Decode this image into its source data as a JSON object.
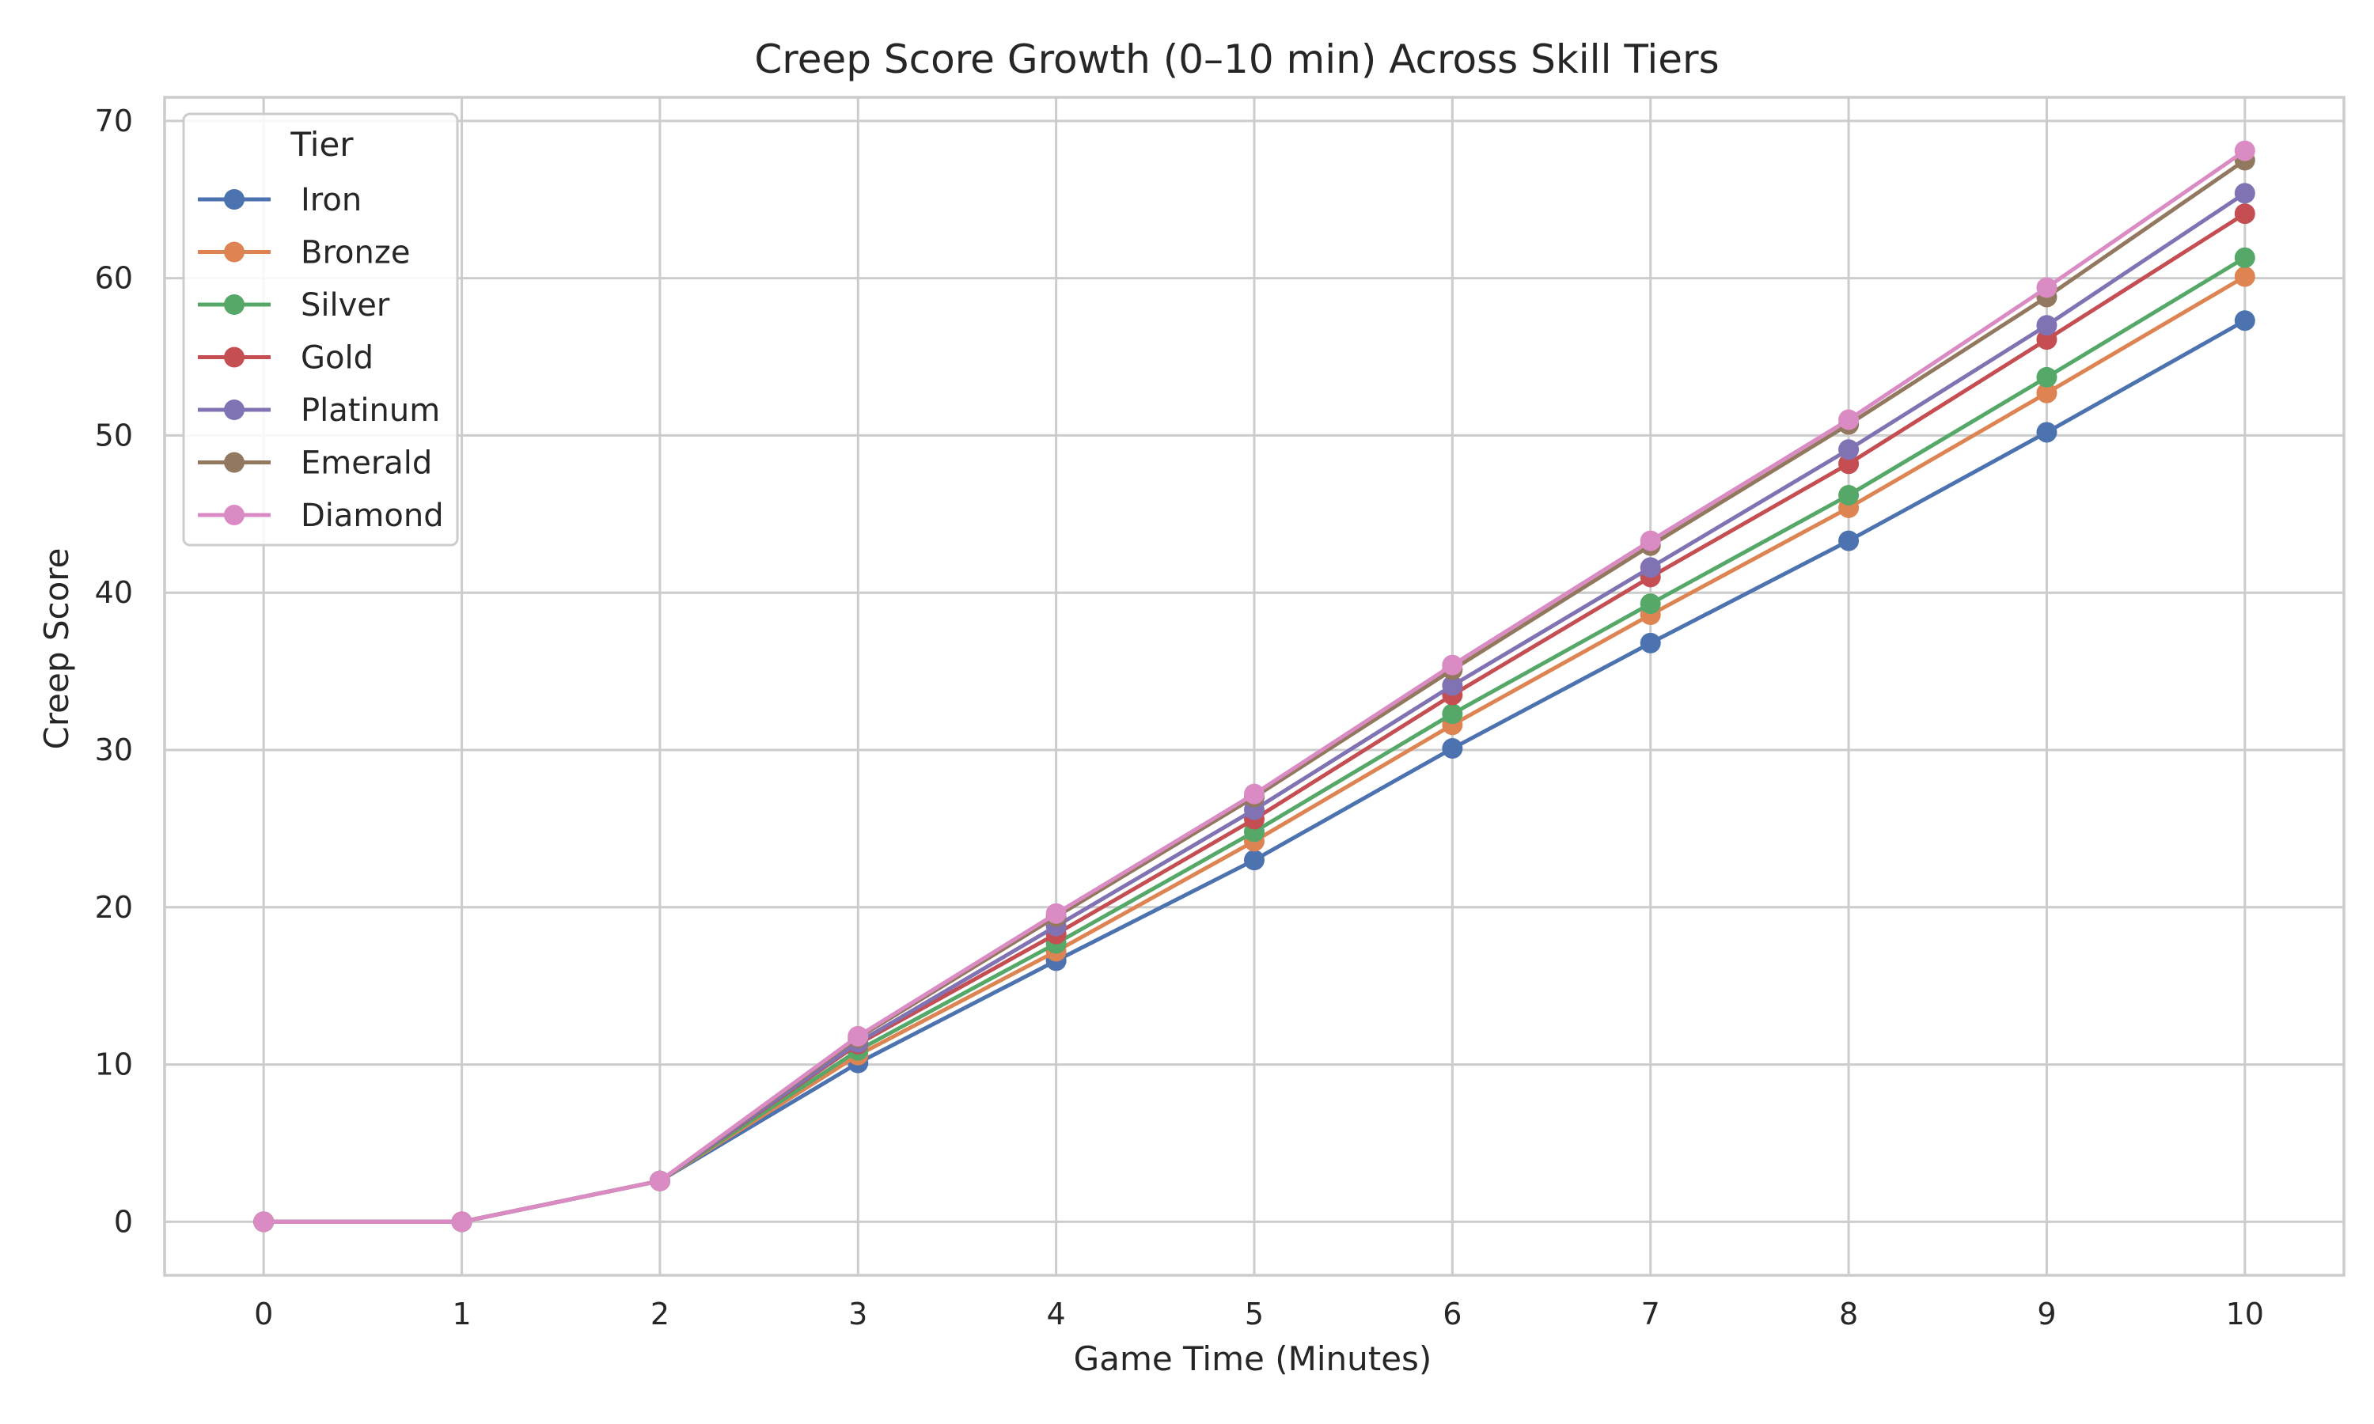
{
  "chart_data": {
    "type": "line",
    "title": "Creep Score Growth (0–10 min) Across Skill Tiers",
    "xlabel": "Game Time (Minutes)",
    "ylabel": "Creep Score",
    "x": [
      0,
      1,
      2,
      3,
      4,
      5,
      6,
      7,
      8,
      9,
      10
    ],
    "xlim": [
      -0.5,
      10.5
    ],
    "ylim": [
      -3.4,
      71.5
    ],
    "xticks": [
      0,
      1,
      2,
      3,
      4,
      5,
      6,
      7,
      8,
      9,
      10
    ],
    "yticks": [
      0,
      10,
      20,
      30,
      40,
      50,
      60,
      70
    ],
    "grid": true,
    "legend": {
      "title": "Tier",
      "placement": "top-left"
    },
    "series": [
      {
        "name": "Iron",
        "color": "#4c72b0",
        "values": [
          0,
          0,
          2.6,
          10.1,
          16.6,
          23.0,
          30.1,
          36.8,
          43.3,
          50.2,
          57.3
        ]
      },
      {
        "name": "Bronze",
        "color": "#dd8452",
        "values": [
          0,
          0,
          2.6,
          10.6,
          17.2,
          24.2,
          31.6,
          38.6,
          45.4,
          52.7,
          60.1
        ]
      },
      {
        "name": "Silver",
        "color": "#55a868",
        "values": [
          0,
          0,
          2.6,
          10.9,
          17.7,
          24.8,
          32.3,
          39.3,
          46.2,
          53.7,
          61.3
        ]
      },
      {
        "name": "Gold",
        "color": "#c44e52",
        "values": [
          0,
          0,
          2.6,
          11.3,
          18.3,
          25.6,
          33.5,
          41.0,
          48.2,
          56.1,
          64.1
        ]
      },
      {
        "name": "Platinum",
        "color": "#8172b3",
        "values": [
          0,
          0,
          2.6,
          11.4,
          18.8,
          26.2,
          34.1,
          41.6,
          49.1,
          57.0,
          65.4
        ]
      },
      {
        "name": "Emerald",
        "color": "#937860",
        "values": [
          0,
          0,
          2.6,
          11.7,
          19.4,
          27.0,
          35.1,
          43.0,
          50.7,
          58.8,
          67.5
        ]
      },
      {
        "name": "Diamond",
        "color": "#da8bc3",
        "values": [
          0,
          0,
          2.6,
          11.8,
          19.6,
          27.2,
          35.4,
          43.3,
          51.0,
          59.4,
          68.1
        ]
      }
    ]
  }
}
